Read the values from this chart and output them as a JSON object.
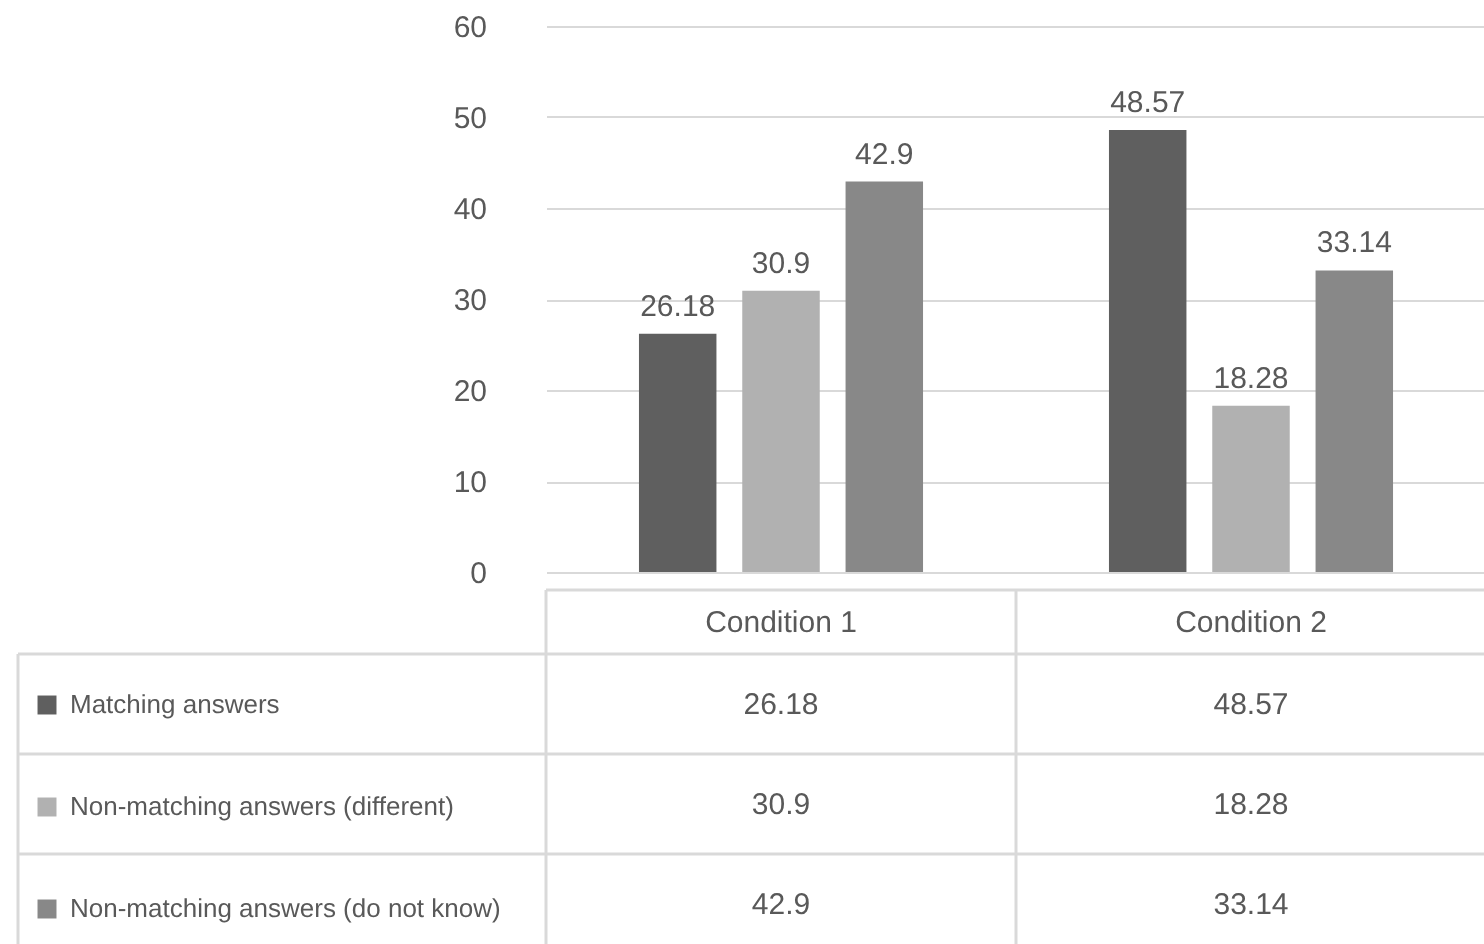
{
  "chart_data": {
    "type": "bar",
    "categories": [
      "Condition 1",
      "Condition 2"
    ],
    "series": [
      {
        "name": "Matching answers",
        "color": "#5f5f5f",
        "values": [
          26.18,
          48.57
        ],
        "value_labels": [
          "26.18",
          "48.57"
        ]
      },
      {
        "name": "Non-matching answers (different)",
        "color": "#b1b1b1",
        "values": [
          30.9,
          18.28
        ],
        "value_labels": [
          "30.9",
          "18.28"
        ]
      },
      {
        "name": "Non-matching answers (do not know)",
        "color": "#888888",
        "values": [
          42.9,
          33.14
        ],
        "value_labels": [
          "42.9",
          "33.14"
        ]
      }
    ],
    "annotations": [
      "26.18",
      "48.57",
      "30.9",
      "18.28",
      "42.9",
      "33.14"
    ],
    "ylim": [
      0,
      60
    ],
    "yticks": [
      0,
      10,
      20,
      30,
      40,
      50,
      60
    ],
    "grid": "y",
    "legend": "bottom"
  }
}
